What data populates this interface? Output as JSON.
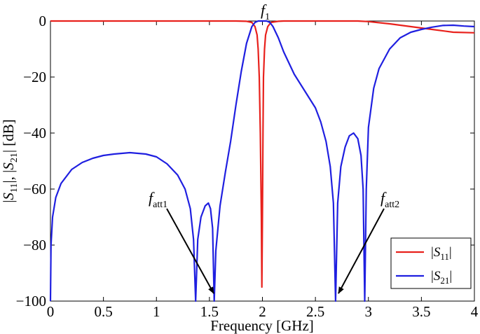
{
  "chart_data": {
    "type": "line",
    "xlabel": "Frequency [GHz]",
    "ylabel": "|S11|, |S21| [dB]",
    "xlim": [
      0,
      4
    ],
    "ylim": [
      -100,
      0
    ],
    "xticks": [
      "0",
      "0.5",
      "1",
      "1.5",
      "2",
      "2.5",
      "3",
      "3.5",
      "4"
    ],
    "yticks": [
      "0",
      "−20",
      "−40",
      "−60",
      "−80",
      "−100"
    ],
    "grid": false,
    "legend": "bottom-right",
    "series": [
      {
        "name": "|S11|",
        "color": "#e8211c",
        "points": [
          [
            0,
            0
          ],
          [
            1.0,
            0
          ],
          [
            1.75,
            0
          ],
          [
            1.85,
            -0.1
          ],
          [
            1.9,
            -0.5
          ],
          [
            1.93,
            -2
          ],
          [
            1.95,
            -5
          ],
          [
            1.96,
            -10
          ],
          [
            1.97,
            -20
          ],
          [
            1.98,
            -40
          ],
          [
            1.99,
            -70
          ],
          [
            1.995,
            -95
          ],
          [
            2.0,
            -70
          ],
          [
            2.005,
            -40
          ],
          [
            2.01,
            -20
          ],
          [
            2.02,
            -10
          ],
          [
            2.03,
            -5
          ],
          [
            2.05,
            -2
          ],
          [
            2.08,
            -0.5
          ],
          [
            2.15,
            -0.1
          ],
          [
            2.2,
            0
          ],
          [
            2.9,
            0
          ],
          [
            3.0,
            -0.2
          ],
          [
            3.2,
            -1
          ],
          [
            3.4,
            -2
          ],
          [
            3.6,
            -3
          ],
          [
            3.8,
            -4
          ],
          [
            4.0,
            -4.2
          ]
        ]
      },
      {
        "name": "|S21|",
        "color": "#1f1fe0",
        "points": [
          [
            0,
            -100
          ],
          [
            0.005,
            -80
          ],
          [
            0.02,
            -70
          ],
          [
            0.05,
            -63
          ],
          [
            0.1,
            -58
          ],
          [
            0.2,
            -53
          ],
          [
            0.3,
            -50.5
          ],
          [
            0.4,
            -49
          ],
          [
            0.5,
            -48
          ],
          [
            0.6,
            -47.5
          ],
          [
            0.75,
            -47
          ],
          [
            0.9,
            -47.5
          ],
          [
            1.0,
            -48.5
          ],
          [
            1.1,
            -51
          ],
          [
            1.2,
            -55
          ],
          [
            1.27,
            -60
          ],
          [
            1.32,
            -67
          ],
          [
            1.35,
            -78
          ],
          [
            1.37,
            -100
          ],
          [
            1.39,
            -78
          ],
          [
            1.42,
            -70
          ],
          [
            1.46,
            -66
          ],
          [
            1.49,
            -65
          ],
          [
            1.51,
            -67
          ],
          [
            1.53,
            -74
          ],
          [
            1.545,
            -100
          ],
          [
            1.56,
            -82
          ],
          [
            1.6,
            -66
          ],
          [
            1.65,
            -54
          ],
          [
            1.7,
            -43
          ],
          [
            1.75,
            -30
          ],
          [
            1.8,
            -18
          ],
          [
            1.85,
            -8
          ],
          [
            1.9,
            -2
          ],
          [
            1.93,
            -0.5
          ],
          [
            1.96,
            0
          ],
          [
            2.0,
            0
          ],
          [
            2.04,
            0
          ],
          [
            2.07,
            -0.5
          ],
          [
            2.1,
            -2
          ],
          [
            2.15,
            -6
          ],
          [
            2.2,
            -11
          ],
          [
            2.3,
            -19
          ],
          [
            2.4,
            -25
          ],
          [
            2.5,
            -31
          ],
          [
            2.55,
            -36
          ],
          [
            2.6,
            -43
          ],
          [
            2.64,
            -52
          ],
          [
            2.67,
            -65
          ],
          [
            2.69,
            -100
          ],
          [
            2.71,
            -65
          ],
          [
            2.74,
            -52
          ],
          [
            2.78,
            -45
          ],
          [
            2.82,
            -41
          ],
          [
            2.86,
            -40
          ],
          [
            2.9,
            -42
          ],
          [
            2.93,
            -48
          ],
          [
            2.95,
            -60
          ],
          [
            2.965,
            -100
          ],
          [
            2.98,
            -60
          ],
          [
            3.0,
            -38
          ],
          [
            3.05,
            -24
          ],
          [
            3.1,
            -17
          ],
          [
            3.2,
            -10
          ],
          [
            3.3,
            -6
          ],
          [
            3.4,
            -4
          ],
          [
            3.5,
            -3
          ],
          [
            3.6,
            -2.2
          ],
          [
            3.7,
            -1.6
          ],
          [
            3.8,
            -1.5
          ],
          [
            3.9,
            -1.8
          ],
          [
            4.0,
            -2
          ]
        ]
      }
    ],
    "annotations": [
      {
        "label": "f",
        "sub": "1",
        "x": 2.0,
        "y": 0
      },
      {
        "label": "f",
        "sub": "att1",
        "x": 1.545,
        "y": -100
      },
      {
        "label": "f",
        "sub": "att2",
        "x": 2.69,
        "y": -100
      }
    ]
  }
}
